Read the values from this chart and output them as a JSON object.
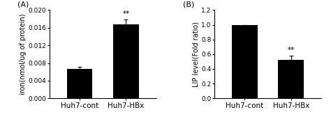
{
  "panel_A": {
    "label": "(A)",
    "categories": [
      "Huh7-cont",
      "Huh7-HBx"
    ],
    "values": [
      0.0067,
      0.0168
    ],
    "errors": [
      0.0005,
      0.001
    ],
    "ylabel": "iron(nmol/ug of protein)",
    "ylim": [
      0,
      0.02
    ],
    "yticks": [
      0.0,
      0.004,
      0.008,
      0.012,
      0.016,
      0.02
    ],
    "ytick_labels": [
      "0.000",
      "0.004",
      "0.008",
      "0.012",
      "0.016",
      "0.020"
    ],
    "significance": [
      "",
      "**"
    ],
    "bar_color": "#000000",
    "bar_width": 0.55
  },
  "panel_B": {
    "label": "(B)",
    "categories": [
      "Huh7-cont",
      "Huh7-HBx"
    ],
    "values": [
      1.0,
      0.525
    ],
    "errors": [
      0.0,
      0.055
    ],
    "ylabel": "LIP level(Fold ratio)",
    "ylim": [
      0,
      1.2
    ],
    "yticks": [
      0.0,
      0.2,
      0.4,
      0.6,
      0.8,
      1.0,
      1.2
    ],
    "ytick_labels": [
      "0.0",
      "0.2",
      "0.4",
      "0.6",
      "0.8",
      "1.0",
      "1.2"
    ],
    "significance": [
      "",
      "**"
    ],
    "bar_color": "#000000",
    "bar_width": 0.55
  },
  "background_color": "#ffffff",
  "tick_fontsize": 6.5,
  "ylabel_fontsize": 7,
  "xlabel_fontsize": 7.5,
  "sig_fontsize": 7.5,
  "panel_label_fontsize": 8
}
